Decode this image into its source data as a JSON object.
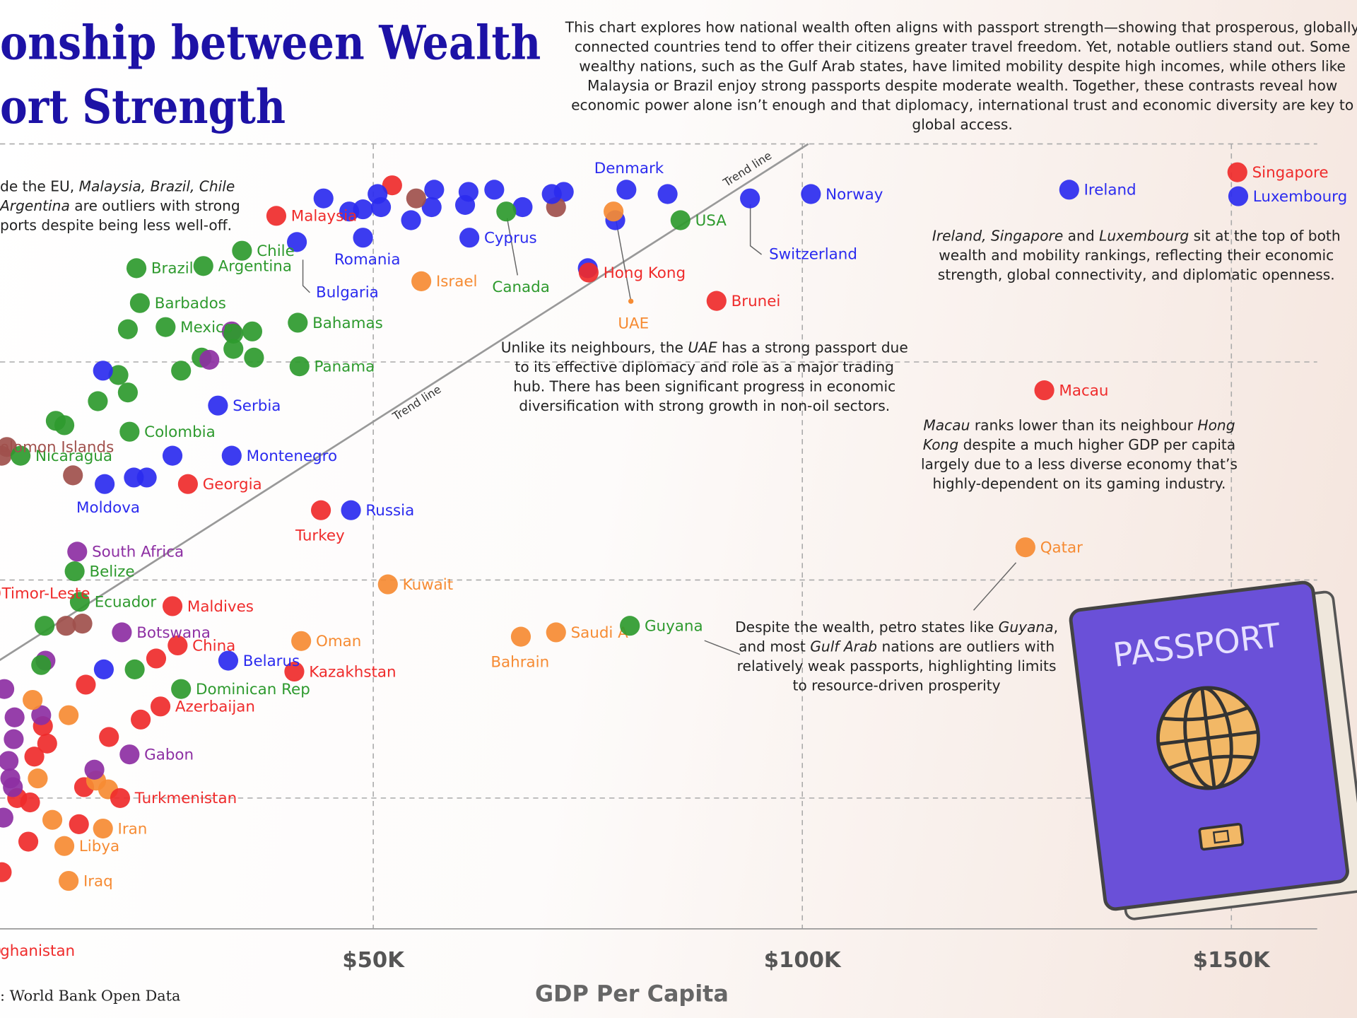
{
  "chart_data": {
    "type": "scatter",
    "title_lines": [
      "onship between Wealth",
      "ort Strength"
    ],
    "description": [
      "This chart explores how national wealth often aligns with passport strength—showing that prosperous, globally",
      "connected countries tend to offer their citizens greater travel freedom. Yet, notable outliers stand out. Some",
      "wealthy nations, such as the Gulf Arab states, have limited mobility despite high incomes, while others like",
      "Malaysia or Brazil enjoy strong passports despite moderate wealth. Together, these contrasts reveal how",
      "economic power alone isn’t enough and that diplomacy, international trust and economic diversity are key to",
      "global access."
    ],
    "annotations": [
      {
        "lines": [
          [
            {
              "text": "de the EU, "
            },
            {
              "text": "Malaysia, Brazil, Chile",
              "italic": true
            }
          ],
          [
            {
              "text": "Argentina",
              "italic": true
            },
            {
              "text": " are outliers with strong"
            }
          ],
          [
            {
              "text": "ports despite being less well-off."
            }
          ]
        ]
      },
      {
        "lines": [
          [
            {
              "text": "Ireland, Singapore",
              "italic": true
            },
            {
              "text": " and "
            },
            {
              "text": "Luxembourg",
              "italic": true
            },
            {
              "text": " sit at the top of both"
            }
          ],
          [
            {
              "text": "wealth and mobility rankings, reflecting their economic"
            }
          ],
          [
            {
              "text": "strength, global connectivity, and diplomatic openness."
            }
          ]
        ]
      },
      {
        "lines": [
          [
            {
              "text": "Unlike its neighbours, the "
            },
            {
              "text": "UAE",
              "italic": true
            },
            {
              "text": " has a strong passport due"
            }
          ],
          [
            {
              "text": "to its effective diplomacy and role as a major trading"
            }
          ],
          [
            {
              "text": "hub. There has been significant progress in economic"
            }
          ],
          [
            {
              "text": "diversification with strong growth in non-oil sectors."
            }
          ]
        ]
      },
      {
        "lines": [
          [
            {
              "text": "Macau",
              "italic": true
            },
            {
              "text": " ranks lower than its neighbour "
            },
            {
              "text": "Hong",
              "italic": true
            }
          ],
          [
            {
              "text": "Kong",
              "italic": true
            },
            {
              "text": " despite a much higher GDP per capita"
            }
          ],
          [
            {
              "text": "largely due to a less diverse economy that’s"
            }
          ],
          [
            {
              "text": "highly-dependent on its gaming industry."
            }
          ]
        ]
      },
      {
        "lines": [
          [
            {
              "text": "Despite the wealth, petro states like "
            },
            {
              "text": "Guyana",
              "italic": true
            },
            {
              "text": ","
            }
          ],
          [
            {
              "text": "and most "
            },
            {
              "text": "Gulf Arab",
              "italic": true
            },
            {
              "text": " nations are outliers with"
            }
          ],
          [
            {
              "text": "relatively weak passports, highlighting limits"
            }
          ],
          [
            {
              "text": "to resource-driven prosperity"
            }
          ]
        ]
      }
    ],
    "x_axis_label": "GDP Per Capita",
    "source": ": World Bank Open Data",
    "illustration_text": "PASSPORT",
    "xlim": [
      6500,
      160000
    ],
    "ylim": [
      -30,
      426
    ],
    "xticks": [
      {
        "value": 50000,
        "label": "$50K"
      },
      {
        "value": 100000,
        "label": "$100K"
      },
      {
        "value": 150000,
        "label": "$150K"
      }
    ],
    "yticks": [
      60,
      160,
      260,
      360
    ],
    "grid": true,
    "trend_line": {
      "label": "Trend line",
      "x": [
        0,
        100700
      ],
      "y": [
        107,
        360
      ]
    },
    "labels": [
      "Singapore",
      "Luxembourg",
      "Ireland",
      "Norway",
      "Switzerland",
      "Denmark",
      "USA",
      "UAE",
      "Hong Kong",
      "Brunei",
      "Macau",
      "Qatar",
      "Saudi A",
      "Guyana",
      "Bahrain",
      "Kuwait",
      "Oman",
      "Kazakhstan",
      "Russia",
      "Turkey",
      "Israel",
      "Cyprus",
      "Canada",
      "Romania",
      "Bulgaria",
      "Malaysia",
      "Chile",
      "Argentina",
      "Brazil",
      "Barbados",
      "Mexico",
      "Bahamas",
      "Panama",
      "Serbia",
      "Colombia",
      "Montenegro",
      "Georgia",
      "Moldova",
      "Nicaragua",
      "olomon Islands",
      "South Africa",
      "Belize",
      "Timor-Leste",
      "Ecuador",
      "Maldives",
      "Botswana",
      "China",
      "Belarus",
      "Dominican Rep",
      "Azerbaijan",
      "Gabon",
      "Turkmenistan",
      "Iran",
      "Libya",
      "Iraq",
      "ghanistan",
      null,
      null,
      null,
      null,
      null,
      null,
      null,
      null,
      null,
      null,
      null,
      null,
      null,
      null,
      null,
      null,
      null,
      null,
      null,
      null,
      null,
      null,
      null,
      null,
      null,
      null,
      null,
      null,
      null,
      null,
      null,
      null,
      null,
      null,
      null,
      null,
      null,
      null,
      null,
      null,
      null,
      null,
      null,
      null,
      null,
      null,
      null,
      null,
      null,
      null,
      null,
      null,
      null,
      null,
      null,
      null,
      null,
      null,
      null,
      null,
      null,
      null,
      null,
      null,
      null,
      null,
      null,
      null,
      null,
      null,
      null,
      null,
      null,
      null,
      null
    ],
    "x": [
      150700,
      150800,
      131100,
      101000,
      93900,
      79500,
      85800,
      78000,
      75100,
      90000,
      128200,
      126000,
      71300,
      79900,
      67200,
      51700,
      41600,
      40800,
      47400,
      43900,
      55600,
      61200,
      65500,
      48800,
      41100,
      38700,
      34700,
      30200,
      22400,
      22800,
      25800,
      41200,
      41400,
      31900,
      21600,
      33500,
      28400,
      18700,
      8900,
      7300,
      15500,
      15200,
      5400,
      15800,
      26600,
      20700,
      27200,
      33100,
      27600,
      25200,
      21600,
      20500,
      18500,
      14000,
      14500,
      5400,
      44200,
      47200,
      48800,
      50500,
      50900,
      52200,
      55000,
      54400,
      56800,
      57100,
      60700,
      61100,
      64100,
      67400,
      70800,
      71300,
      72200,
      78200,
      75000,
      84300,
      21400,
      33700,
      33700,
      35900,
      30900,
      30000,
      27600,
      18500,
      20300,
      21400,
      17900,
      13000,
      14000,
      6700,
      26600,
      15000,
      22100,
      23600,
      33500,
      36100,
      11700,
      14200,
      16100,
      11300,
      11800,
      18600,
      22200,
      16500,
      24700,
      10300,
      7000,
      8200,
      11300,
      11500,
      14500,
      22900,
      19200,
      12000,
      8100,
      7500,
      10500,
      7700,
      10900,
      17500,
      17700,
      16300,
      19100,
      8000,
      8500,
      10000,
      12600,
      15700,
      9800,
      6700,
      6900
    ],
    "y": [
      347,
      336,
      339,
      337,
      335,
      339,
      325,
      329,
      301,
      288,
      247,
      175,
      136,
      139,
      134,
      158,
      132,
      118,
      192,
      192,
      297,
      317,
      329,
      317,
      315,
      327,
      311,
      304,
      303,
      287,
      276,
      278,
      258,
      240,
      228,
      217,
      204,
      204,
      217,
      221,
      173,
      164,
      154,
      150,
      148,
      136,
      130,
      123,
      110,
      102,
      80,
      60,
      46,
      38,
      22,
      -10,
      335,
      329,
      330,
      337,
      331,
      341,
      335,
      325,
      331,
      339,
      332,
      338,
      339,
      331,
      337,
      331,
      338,
      325,
      303,
      337,
      275,
      273,
      266,
      274,
      261,
      262,
      256,
      256,
      254,
      246,
      242,
      233,
      231,
      217,
      217,
      208,
      207,
      207,
      274,
      262,
      139,
      139,
      140,
      121,
      123,
      119,
      119,
      112,
      124,
      105,
      110,
      97,
      98,
      93,
      98,
      96,
      88,
      85,
      87,
      77,
      79,
      69,
      69,
      73,
      68,
      65,
      64,
      65,
      60,
      58,
      50,
      48,
      40,
      26,
      51
    ],
    "colors": [
      "#ef2b2b",
      "#2b2bef",
      "#2b2bef",
      "#2b2bef",
      "#2b2bef",
      "#2b2bef",
      "#2e9a2e",
      "#f68b33",
      "#ef2b2b",
      "#ef2b2b",
      "#ef2b2b",
      "#f68b33",
      "#f68b33",
      "#2e9a2e",
      "#f68b33",
      "#f68b33",
      "#f68b33",
      "#ef2b2b",
      "#2b2bef",
      "#ef2b2b",
      "#f68b33",
      "#2b2bef",
      "#2e9a2e",
      "#2b2bef",
      "#2b2bef",
      "#ef2b2b",
      "#2e9a2e",
      "#2e9a2e",
      "#2e9a2e",
      "#2e9a2e",
      "#2e9a2e",
      "#2e9a2e",
      "#2e9a2e",
      "#2b2bef",
      "#2e9a2e",
      "#2b2bef",
      "#ef2b2b",
      "#2b2bef",
      "#2e9a2e",
      "#a0504c",
      "#8d2fa3",
      "#2e9a2e",
      "#ef2b2b",
      "#2e9a2e",
      "#ef2b2b",
      "#8d2fa3",
      "#ef2b2b",
      "#2b2bef",
      "#2e9a2e",
      "#ef2b2b",
      "#8d2fa3",
      "#ef2b2b",
      "#f68b33",
      "#f68b33",
      "#f68b33",
      "#ef2b2b",
      "#2b2bef",
      "#2b2bef",
      "#2b2bef",
      "#2b2bef",
      "#2b2bef",
      "#ef2b2b",
      "#a0504c",
      "#2b2bef",
      "#2b2bef",
      "#2b2bef",
      "#2b2bef",
      "#2b2bef",
      "#2b2bef",
      "#2b2bef",
      "#2b2bef",
      "#a0504c",
      "#2b2bef",
      "#2b2bef",
      "#2b2bef",
      "#2b2bef",
      "#2e9a2e",
      "#2e9a2e",
      "#2e9a2e",
      "#2e9a2e",
      "#8d2fa3",
      "#2e9a2e",
      "#2e9a2e",
      "#2b2bef",
      "#2e9a2e",
      "#2e9a2e",
      "#2e9a2e",
      "#2e9a2e",
      "#2e9a2e",
      "#a0504c",
      "#2b2bef",
      "#a0504c",
      "#2b2bef",
      "#2b2bef",
      "#8d2fa3",
      "#2e9a2e",
      "#2e9a2e",
      "#a0504c",
      "#a0504c",
      "#2e9a2e",
      "#8d2fa3",
      "#2b2bef",
      "#2e9a2e",
      "#ef2b2b",
      "#ef2b2b",
      "#f68b33",
      "#8d2fa3",
      "#8d2fa3",
      "#8d2fa3",
      "#ef2b2b",
      "#f68b33",
      "#ef2b2b",
      "#ef2b2b",
      "#ef2b2b",
      "#8d2fa3",
      "#8d2fa3",
      "#ef2b2b",
      "#8d2fa3",
      "#f68b33",
      "#8d2fa3",
      "#f68b33",
      "#ef2b2b",
      "#f68b33",
      "#8d2fa3",
      "#ef2b2b",
      "#ef2b2b",
      "#f68b33",
      "#ef2b2b",
      "#ef2b2b",
      "#ef2b2b",
      "#8d2fa3"
    ]
  }
}
